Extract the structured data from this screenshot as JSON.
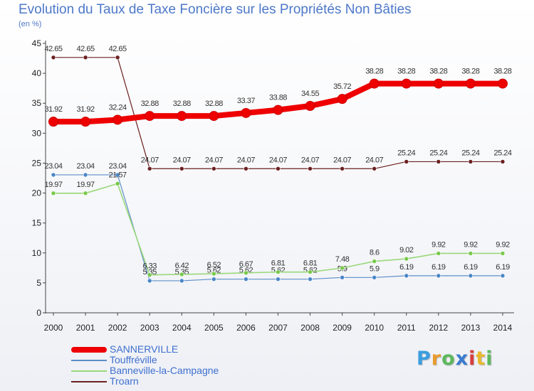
{
  "header": {
    "title": "Evolution du Taux de Taxe Foncière sur les Propriétés Non Bâties",
    "subtitle": "(en %)"
  },
  "logo": {
    "text": "Proxiti",
    "letter_colors": [
      "#3a9ee0",
      "#e89a2c",
      "#5cb85c",
      "#3a7bd0",
      "#d83c3c",
      "#e8b82c",
      "#5cb85c"
    ]
  },
  "chart_data": {
    "type": "line",
    "title": "Evolution du Taux de Taxe Foncière sur les Propriétés Non Bâties",
    "ylabel": "(en %)",
    "xlabel": "",
    "ylim": [
      0,
      45
    ],
    "yticks": [
      0,
      5,
      10,
      15,
      20,
      25,
      30,
      35,
      40,
      45
    ],
    "grid": false,
    "x": [
      2000,
      2001,
      2002,
      2003,
      2004,
      2005,
      2006,
      2007,
      2008,
      2009,
      2010,
      2011,
      2012,
      2013,
      2014
    ],
    "series": [
      {
        "name": "Troarn",
        "color": "#6b2020",
        "marker": "#6b2020",
        "width": 1.2,
        "radius": 3,
        "values": [
          42.65,
          42.65,
          42.65,
          24.07,
          24.07,
          24.07,
          24.07,
          24.07,
          24.07,
          24.07,
          24.07,
          25.24,
          25.24,
          25.24,
          25.24
        ],
        "labels": [
          "42.65",
          "42.65",
          "42.65",
          "24.07",
          "24.07",
          "24.07",
          "24.07",
          "24.07",
          "24.07",
          "24.07",
          "24.07",
          "25.24",
          "25.24",
          "25.24",
          "25.24"
        ]
      },
      {
        "name": "Touffréville",
        "color": "#5d8ec8",
        "marker": "#4a86c8",
        "width": 1.2,
        "radius": 3,
        "values": [
          23.04,
          23.04,
          23.04,
          5.35,
          5.35,
          5.62,
          5.62,
          5.62,
          5.62,
          5.9,
          5.9,
          6.19,
          6.19,
          6.19,
          6.19
        ],
        "labels": [
          "23.04",
          "23.04",
          "23.04",
          "5.35",
          "5.35",
          "5.62",
          "5.62",
          "5.62",
          "5.62",
          "5.9",
          "5.9",
          "6.19",
          "6.19",
          "6.19",
          "6.19"
        ]
      },
      {
        "name": "Banneville-la-Campagne",
        "color": "#9ad87a",
        "marker": "#77c94a",
        "width": 1.6,
        "radius": 3,
        "values": [
          19.97,
          19.97,
          21.57,
          6.33,
          6.42,
          6.52,
          6.67,
          6.81,
          6.81,
          7.48,
          8.6,
          9.02,
          9.92,
          9.92,
          9.92
        ],
        "labels": [
          "19.97",
          "19.97",
          "21.57",
          "6.33",
          "6.42",
          "6.52",
          "6.67",
          "6.81",
          "6.81",
          "7.48",
          "8.6",
          "9.02",
          "9.92",
          "9.92",
          "9.92"
        ]
      },
      {
        "name": "SANNERVILLE",
        "color": "#ee0000",
        "marker": "#ee0000",
        "width": 8,
        "radius": 6.5,
        "values": [
          31.92,
          31.92,
          32.24,
          32.88,
          32.88,
          32.88,
          33.37,
          33.88,
          34.55,
          35.72,
          38.28,
          38.28,
          38.28,
          38.28,
          38.28
        ],
        "labels": [
          "31.92",
          "31.92",
          "32.24",
          "32.88",
          "32.88",
          "32.88",
          "33.37",
          "33.88",
          "34.55",
          "35.72",
          "38.28",
          "38.28",
          "38.28",
          "38.28",
          "38.28"
        ]
      }
    ],
    "legend": {
      "position": "bottom-left",
      "items": [
        {
          "name": "SANNERVILLE",
          "color": "#ee0000",
          "thickness": 8
        },
        {
          "name": "Touffréville",
          "color": "#5d8ec8",
          "thickness": 2
        },
        {
          "name": "Banneville-la-Campagne",
          "color": "#9ad87a",
          "thickness": 2
        },
        {
          "name": "Troarn",
          "color": "#6b2020",
          "thickness": 2
        }
      ]
    }
  }
}
